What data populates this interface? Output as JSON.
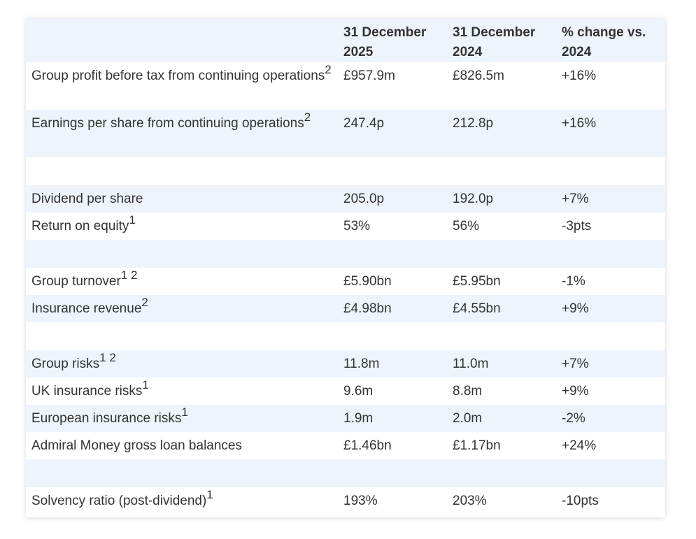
{
  "header": {
    "col_2025": "31 December 2025",
    "col_2024": "31 December 2024",
    "col_change": "% change vs. 2024"
  },
  "rows": [
    {
      "label": "Group profit before tax from continuing operations",
      "sup": "2",
      "v2025": "£957.9m",
      "v2024": "£826.5m",
      "change": "+16%"
    },
    {
      "label": "Earnings per share from continuing operations",
      "sup": "2",
      "v2025": "247.4p",
      "v2024": "212.8p",
      "change": "+16%"
    },
    {
      "label": "Dividend per share",
      "sup": "",
      "v2025": "205.0p",
      "v2024": "192.0p",
      "change": "+7%"
    },
    {
      "label": "Return on equity",
      "sup": "1",
      "v2025": "53%",
      "v2024": "56%",
      "change": "-3pts"
    },
    {
      "label": "Group turnover",
      "sup": "1 2",
      "v2025": "£5.90bn",
      "v2024": "£5.95bn",
      "change": "-1%"
    },
    {
      "label": "Insurance revenue",
      "sup": "2",
      "v2025": "£4.98bn",
      "v2024": "£4.55bn",
      "change": "+9%"
    },
    {
      "label": "Group risks",
      "sup": "1 2",
      "v2025": "11.8m",
      "v2024": "11.0m",
      "change": "+7%"
    },
    {
      "label": "UK insurance risks",
      "sup": "1",
      "v2025": "9.6m",
      "v2024": "8.8m",
      "change": "+9%"
    },
    {
      "label": "European insurance risks",
      "sup": "1",
      "v2025": "1.9m",
      "v2024": "2.0m",
      "change": "-2%"
    },
    {
      "label": "Admiral Money gross loan balances",
      "sup": "",
      "v2025": "£1.46bn",
      "v2024": "£1.17bn",
      "change": "+24%"
    },
    {
      "label": "Solvency ratio (post-dividend)",
      "sup": "1",
      "v2025": "193%",
      "v2024": "203%",
      "change": "-10pts"
    }
  ],
  "colors": {
    "stripe": "#eef4fb",
    "text": "#333333"
  }
}
